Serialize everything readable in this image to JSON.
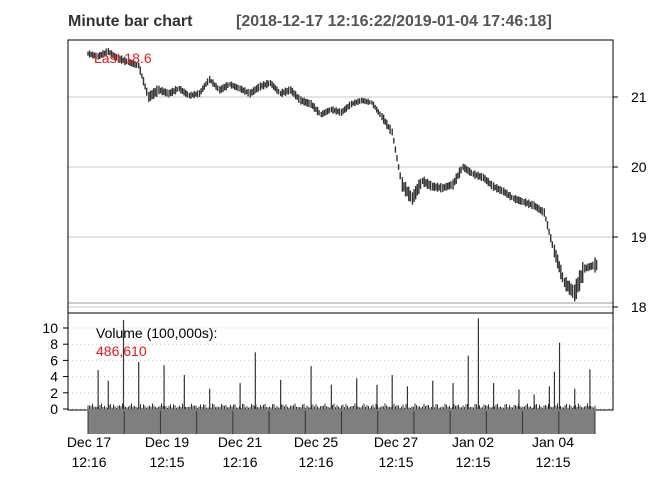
{
  "header": {
    "title": "Minute bar chart",
    "range": "[2018-12-17 12:16:22/2019-01-04 17:46:18]"
  },
  "colors": {
    "price": "#333333",
    "grid": "#c8c8c8",
    "accent_red": "#e41a1c",
    "axis": "#000000",
    "date_band": "#7f7f7f"
  },
  "chart_data": [
    {
      "type": "bar",
      "subtype": "ohlc-minute-bars",
      "title": "Minute bar chart",
      "subtitle": "[2018-12-17 12:16:22/2019-01-04 17:46:18]",
      "annotation": "Last 18.6",
      "ylim": [
        17.95,
        21.75
      ],
      "yticks": [
        18,
        19,
        20,
        21
      ],
      "grid": true,
      "y_axis_side": "right",
      "x_tick_labels": [
        [
          "Dec 17",
          "12:16"
        ],
        [
          "Dec 19",
          "12:15"
        ],
        [
          "Dec 21",
          "12:16"
        ],
        [
          "Dec 25",
          "12:16"
        ],
        [
          "Dec 27",
          "12:15"
        ],
        [
          "Jan 02",
          "12:15"
        ],
        [
          "Jan 04",
          "12:15"
        ]
      ],
      "x": [
        0,
        2,
        4,
        6,
        8,
        10,
        12,
        14,
        16,
        18,
        20,
        22,
        24,
        26,
        28,
        30,
        32,
        34,
        36,
        38,
        40,
        42,
        44,
        46,
        48,
        50,
        52,
        54,
        56,
        58,
        60,
        62,
        64,
        66,
        68,
        70,
        72,
        74,
        76,
        78,
        80,
        82,
        84,
        86,
        88,
        90,
        92,
        94,
        96,
        98,
        100
      ],
      "close": [
        21.62,
        21.58,
        21.65,
        21.55,
        21.5,
        21.45,
        21.0,
        21.1,
        21.05,
        21.12,
        21.02,
        21.05,
        21.25,
        21.1,
        21.18,
        21.12,
        21.05,
        21.15,
        21.2,
        21.05,
        21.1,
        20.95,
        20.9,
        20.75,
        20.82,
        20.78,
        20.9,
        20.95,
        20.92,
        20.72,
        20.5,
        19.75,
        19.55,
        19.8,
        19.72,
        19.7,
        19.75,
        20.0,
        19.9,
        19.85,
        19.72,
        19.65,
        19.55,
        19.5,
        19.45,
        19.35,
        18.8,
        18.35,
        18.2,
        18.55,
        18.6
      ],
      "high": [
        21.72,
        21.68,
        21.72,
        21.65,
        21.58,
        21.55,
        21.15,
        21.2,
        21.15,
        21.2,
        21.12,
        21.15,
        21.32,
        21.2,
        21.25,
        21.2,
        21.15,
        21.25,
        21.28,
        21.15,
        21.2,
        21.05,
        21.0,
        20.85,
        20.9,
        20.88,
        20.98,
        21.0,
        21.0,
        20.82,
        20.62,
        19.95,
        19.7,
        19.9,
        19.82,
        19.8,
        19.85,
        20.1,
        20.0,
        19.95,
        19.82,
        19.75,
        19.65,
        19.6,
        19.55,
        19.45,
        19.0,
        18.55,
        18.55,
        18.65,
        18.92
      ],
      "low": [
        21.55,
        21.5,
        21.55,
        21.45,
        21.4,
        21.35,
        20.88,
        21.0,
        20.95,
        21.02,
        20.95,
        20.98,
        21.15,
        21.0,
        21.08,
        21.02,
        20.95,
        21.05,
        21.1,
        20.95,
        21.0,
        20.85,
        20.8,
        20.68,
        20.72,
        20.7,
        20.82,
        20.85,
        20.85,
        20.6,
        20.45,
        19.6,
        19.35,
        19.65,
        19.6,
        19.6,
        19.6,
        19.9,
        19.8,
        19.75,
        19.62,
        19.55,
        19.45,
        19.4,
        19.35,
        19.25,
        18.65,
        18.2,
        18.05,
        18.45,
        18.55
      ]
    },
    {
      "type": "bar",
      "subtype": "volume",
      "label": "Volume (100,000s):",
      "value_label": "486,610",
      "ylim": [
        0,
        11
      ],
      "yticks": [
        0,
        2,
        4,
        6,
        8,
        10
      ],
      "grid": true,
      "spikes": [
        {
          "x": 2,
          "v": 4.8
        },
        {
          "x": 4,
          "v": 3.5
        },
        {
          "x": 7,
          "v": 11.0
        },
        {
          "x": 10,
          "v": 5.8
        },
        {
          "x": 15,
          "v": 5.4
        },
        {
          "x": 19,
          "v": 4.2
        },
        {
          "x": 24,
          "v": 2.5
        },
        {
          "x": 30,
          "v": 3.2
        },
        {
          "x": 33,
          "v": 7.0
        },
        {
          "x": 38,
          "v": 3.6
        },
        {
          "x": 44,
          "v": 5.3
        },
        {
          "x": 48,
          "v": 3.0
        },
        {
          "x": 53,
          "v": 3.8
        },
        {
          "x": 57,
          "v": 3.0
        },
        {
          "x": 60,
          "v": 4.2
        },
        {
          "x": 63,
          "v": 2.8
        },
        {
          "x": 68,
          "v": 3.5
        },
        {
          "x": 72,
          "v": 3.2
        },
        {
          "x": 75,
          "v": 6.6
        },
        {
          "x": 77,
          "v": 11.2
        },
        {
          "x": 80,
          "v": 3.2
        },
        {
          "x": 85,
          "v": 2.4
        },
        {
          "x": 88,
          "v": 1.8
        },
        {
          "x": 91,
          "v": 2.8
        },
        {
          "x": 92,
          "v": 4.6
        },
        {
          "x": 93,
          "v": 8.2
        },
        {
          "x": 96,
          "v": 2.5
        },
        {
          "x": 99,
          "v": 4.9
        }
      ]
    }
  ]
}
